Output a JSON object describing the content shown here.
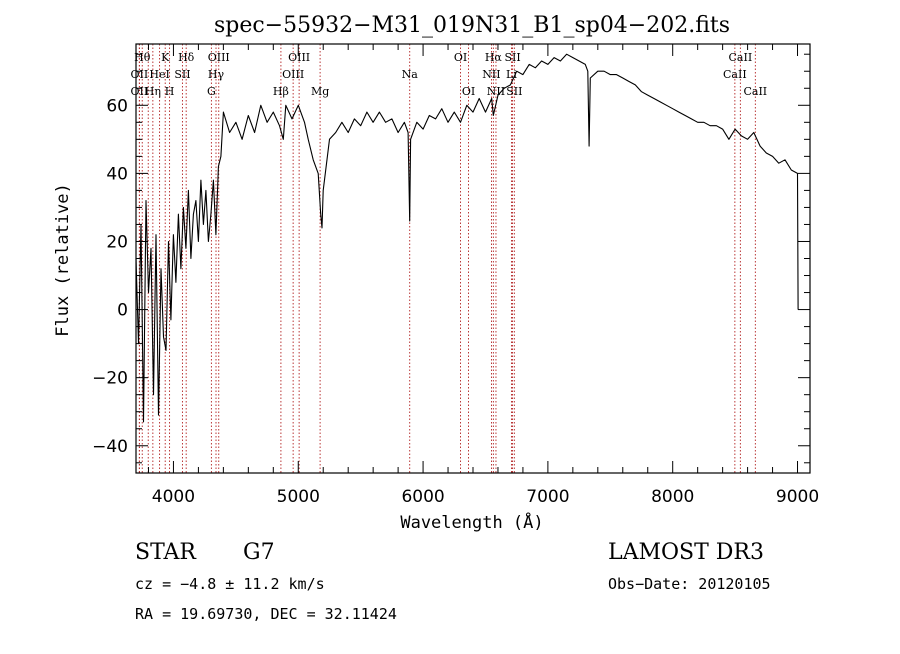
{
  "chart_data": {
    "type": "line",
    "title": "spec−55932−M31_019N31_B1_sp04−202.fits",
    "xlabel": "Wavelength (Å)",
    "ylabel": "Flux (relative)",
    "xlim": [
      3700,
      9100
    ],
    "ylim": [
      -48,
      78
    ],
    "x_major_ticks": [
      4000,
      5000,
      6000,
      7000,
      8000,
      9000
    ],
    "x_tick_labels": [
      "4000",
      "5000",
      "6000",
      "7000",
      "8000",
      "9000"
    ],
    "x_minor_step": 200,
    "y_major_ticks": [
      -40,
      -20,
      0,
      20,
      40,
      60
    ],
    "y_tick_labels": [
      "−40",
      "−20",
      "0",
      "20",
      "40",
      "60"
    ],
    "y_minor_step": 5,
    "line_color": "#000000",
    "marker_color": "#b22222",
    "series": [
      {
        "name": "spectrum",
        "points": [
          [
            3700,
            15
          ],
          [
            3720,
            -10
          ],
          [
            3740,
            25
          ],
          [
            3760,
            -33
          ],
          [
            3780,
            32
          ],
          [
            3800,
            5
          ],
          [
            3820,
            18
          ],
          [
            3840,
            -25
          ],
          [
            3860,
            22
          ],
          [
            3880,
            -31
          ],
          [
            3900,
            12
          ],
          [
            3920,
            -8
          ],
          [
            3940,
            -12
          ],
          [
            3960,
            20
          ],
          [
            3980,
            -3
          ],
          [
            4000,
            22
          ],
          [
            4020,
            8
          ],
          [
            4040,
            28
          ],
          [
            4060,
            12
          ],
          [
            4080,
            30
          ],
          [
            4100,
            18
          ],
          [
            4120,
            35
          ],
          [
            4140,
            15
          ],
          [
            4160,
            28
          ],
          [
            4180,
            32
          ],
          [
            4200,
            20
          ],
          [
            4220,
            38
          ],
          [
            4240,
            25
          ],
          [
            4260,
            35
          ],
          [
            4280,
            20
          ],
          [
            4300,
            28
          ],
          [
            4320,
            38
          ],
          [
            4340,
            22
          ],
          [
            4360,
            42
          ],
          [
            4380,
            45
          ],
          [
            4400,
            58
          ],
          [
            4450,
            52
          ],
          [
            4500,
            55
          ],
          [
            4550,
            50
          ],
          [
            4600,
            57
          ],
          [
            4650,
            52
          ],
          [
            4700,
            60
          ],
          [
            4750,
            55
          ],
          [
            4800,
            58
          ],
          [
            4850,
            54
          ],
          [
            4880,
            50
          ],
          [
            4900,
            60
          ],
          [
            4950,
            56
          ],
          [
            5000,
            60
          ],
          [
            5050,
            55
          ],
          [
            5080,
            50
          ],
          [
            5120,
            44
          ],
          [
            5160,
            40
          ],
          [
            5180,
            28
          ],
          [
            5190,
            24
          ],
          [
            5200,
            35
          ],
          [
            5250,
            50
          ],
          [
            5300,
            52
          ],
          [
            5350,
            55
          ],
          [
            5400,
            52
          ],
          [
            5450,
            56
          ],
          [
            5500,
            54
          ],
          [
            5550,
            58
          ],
          [
            5600,
            55
          ],
          [
            5650,
            58
          ],
          [
            5700,
            55
          ],
          [
            5750,
            56
          ],
          [
            5800,
            52
          ],
          [
            5850,
            55
          ],
          [
            5880,
            52
          ],
          [
            5893,
            26
          ],
          [
            5900,
            50
          ],
          [
            5950,
            55
          ],
          [
            6000,
            53
          ],
          [
            6050,
            57
          ],
          [
            6100,
            56
          ],
          [
            6150,
            59
          ],
          [
            6200,
            55
          ],
          [
            6250,
            58
          ],
          [
            6300,
            55
          ],
          [
            6350,
            60
          ],
          [
            6400,
            58
          ],
          [
            6450,
            62
          ],
          [
            6500,
            58
          ],
          [
            6550,
            62
          ],
          [
            6563,
            57
          ],
          [
            6600,
            63
          ],
          [
            6650,
            65
          ],
          [
            6700,
            66
          ],
          [
            6750,
            70
          ],
          [
            6800,
            69
          ],
          [
            6850,
            72
          ],
          [
            6900,
            71
          ],
          [
            6950,
            73
          ],
          [
            7000,
            72
          ],
          [
            7050,
            74
          ],
          [
            7100,
            73
          ],
          [
            7150,
            75
          ],
          [
            7200,
            74
          ],
          [
            7250,
            73
          ],
          [
            7300,
            72
          ],
          [
            7320,
            70
          ],
          [
            7330,
            48
          ],
          [
            7340,
            68
          ],
          [
            7400,
            70
          ],
          [
            7450,
            70
          ],
          [
            7500,
            69
          ],
          [
            7550,
            69
          ],
          [
            7600,
            68
          ],
          [
            7650,
            67
          ],
          [
            7700,
            66
          ],
          [
            7750,
            64
          ],
          [
            7800,
            63
          ],
          [
            7850,
            62
          ],
          [
            7900,
            61
          ],
          [
            7950,
            60
          ],
          [
            8000,
            59
          ],
          [
            8050,
            58
          ],
          [
            8100,
            57
          ],
          [
            8150,
            56
          ],
          [
            8200,
            55
          ],
          [
            8250,
            55
          ],
          [
            8300,
            54
          ],
          [
            8350,
            54
          ],
          [
            8400,
            53
          ],
          [
            8450,
            50
          ],
          [
            8500,
            53
          ],
          [
            8550,
            51
          ],
          [
            8600,
            50
          ],
          [
            8650,
            52
          ],
          [
            8700,
            48
          ],
          [
            8750,
            46
          ],
          [
            8800,
            45
          ],
          [
            8850,
            43
          ],
          [
            8900,
            44
          ],
          [
            8950,
            41
          ],
          [
            9000,
            40
          ],
          [
            9005,
            0
          ]
        ]
      }
    ],
    "line_markers": [
      {
        "wl": 3750,
        "label": "Hθ",
        "row": 1
      },
      {
        "wl": 3727,
        "label": "OII",
        "row": 2
      },
      {
        "wl": 3727,
        "label": "OII",
        "row": 3
      },
      {
        "wl": 3798,
        "label": "",
        "row": 0
      },
      {
        "wl": 3835,
        "label": "Hη",
        "row": 3
      },
      {
        "wl": 3889,
        "label": "HeI",
        "row": 2
      },
      {
        "wl": 3934,
        "label": "K",
        "row": 1
      },
      {
        "wl": 3969,
        "label": "H",
        "row": 3
      },
      {
        "wl": 4072,
        "label": "SII",
        "row": 2
      },
      {
        "wl": 4102,
        "label": "Hδ",
        "row": 1
      },
      {
        "wl": 4304,
        "label": "G",
        "row": 3
      },
      {
        "wl": 4341,
        "label": "Hγ",
        "row": 2
      },
      {
        "wl": 4363,
        "label": "OIII",
        "row": 1
      },
      {
        "wl": 4861,
        "label": "Hβ",
        "row": 3
      },
      {
        "wl": 4959,
        "label": "OIII",
        "row": 2
      },
      {
        "wl": 5007,
        "label": "OIII",
        "row": 1
      },
      {
        "wl": 5175,
        "label": "Mg",
        "row": 3
      },
      {
        "wl": 5893,
        "label": "Na",
        "row": 2
      },
      {
        "wl": 6300,
        "label": "OI",
        "row": 1
      },
      {
        "wl": 6364,
        "label": "OI",
        "row": 3
      },
      {
        "wl": 6548,
        "label": "NII",
        "row": 2
      },
      {
        "wl": 6563,
        "label": "Hα",
        "row": 1
      },
      {
        "wl": 6584,
        "label": "NII",
        "row": 3
      },
      {
        "wl": 6717,
        "label": "SII",
        "row": 1
      },
      {
        "wl": 6708,
        "label": "Li",
        "row": 2
      },
      {
        "wl": 6731,
        "label": "SII",
        "row": 3
      },
      {
        "wl": 8498,
        "label": "CaII",
        "row": 2
      },
      {
        "wl": 8542,
        "label": "CaII",
        "row": 1
      },
      {
        "wl": 8662,
        "label": "CaII",
        "row": 3
      }
    ]
  },
  "info": {
    "object_class": "STAR",
    "subclass": "G7",
    "survey": "LAMOST DR3",
    "cz": "cz = −4.8 ± 11.2 km/s",
    "obs_date": "Obs−Date: 20120105",
    "coords": "RA =  19.69730, DEC =  32.11424"
  }
}
